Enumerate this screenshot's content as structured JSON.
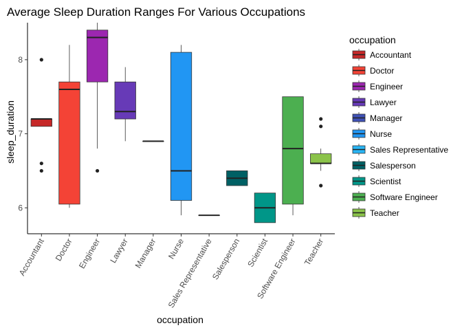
{
  "chart_data": {
    "type": "boxplot",
    "title": "Average Sleep Duration Ranges For Various Occupations",
    "xlabel": "occupation",
    "ylabel": "sleep_duration",
    "ylim": [
      5.65,
      8.5
    ],
    "yticks": [
      6,
      7,
      8
    ],
    "grid": false,
    "legend": {
      "title": "occupation",
      "position": "right"
    },
    "categories": [
      "Accountant",
      "Doctor",
      "Engineer",
      "Lawyer",
      "Manager",
      "Nurse",
      "Sales Representative",
      "Salesperson",
      "Scientist",
      "Software Engineer",
      "Teacher"
    ],
    "colors": [
      "#C62828",
      "#F44336",
      "#9C27B0",
      "#673AB7",
      "#3F51B5",
      "#2196F3",
      "#29B6F6",
      "#006064",
      "#009688",
      "#4CAF50",
      "#8BC34A"
    ],
    "boxes": [
      {
        "whisker_low": 7.1,
        "q1": 7.1,
        "median": 7.2,
        "q3": 7.2,
        "whisker_high": 7.2,
        "outliers": [
          8.0,
          6.6,
          6.5
        ]
      },
      {
        "whisker_low": 6.0,
        "q1": 6.05,
        "median": 7.6,
        "q3": 7.7,
        "whisker_high": 8.2,
        "outliers": []
      },
      {
        "whisker_low": 6.8,
        "q1": 7.7,
        "median": 8.3,
        "q3": 8.4,
        "whisker_high": 8.5,
        "outliers": [
          6.5
        ]
      },
      {
        "whisker_low": 6.9,
        "q1": 7.2,
        "median": 7.3,
        "q3": 7.7,
        "whisker_high": 7.9,
        "outliers": []
      },
      {
        "whisker_low": 6.9,
        "q1": 6.9,
        "median": 6.9,
        "q3": 6.9,
        "whisker_high": 6.9,
        "outliers": []
      },
      {
        "whisker_low": 5.9,
        "q1": 6.1,
        "median": 6.5,
        "q3": 8.1,
        "whisker_high": 8.2,
        "outliers": []
      },
      {
        "whisker_low": 5.9,
        "q1": 5.9,
        "median": 5.9,
        "q3": 5.9,
        "whisker_high": 5.9,
        "outliers": []
      },
      {
        "whisker_low": 6.3,
        "q1": 6.3,
        "median": 6.4,
        "q3": 6.5,
        "whisker_high": 6.5,
        "outliers": []
      },
      {
        "whisker_low": 5.8,
        "q1": 5.8,
        "median": 6.0,
        "q3": 6.2,
        "whisker_high": 6.2,
        "outliers": []
      },
      {
        "whisker_low": 5.9,
        "q1": 6.05,
        "median": 6.8,
        "q3": 7.5,
        "whisker_high": 7.5,
        "outliers": []
      },
      {
        "whisker_low": 6.5,
        "q1": 6.6,
        "median": 6.6,
        "q3": 6.73,
        "whisker_high": 6.8,
        "outliers": [
          7.2,
          7.1,
          6.3
        ]
      }
    ]
  }
}
